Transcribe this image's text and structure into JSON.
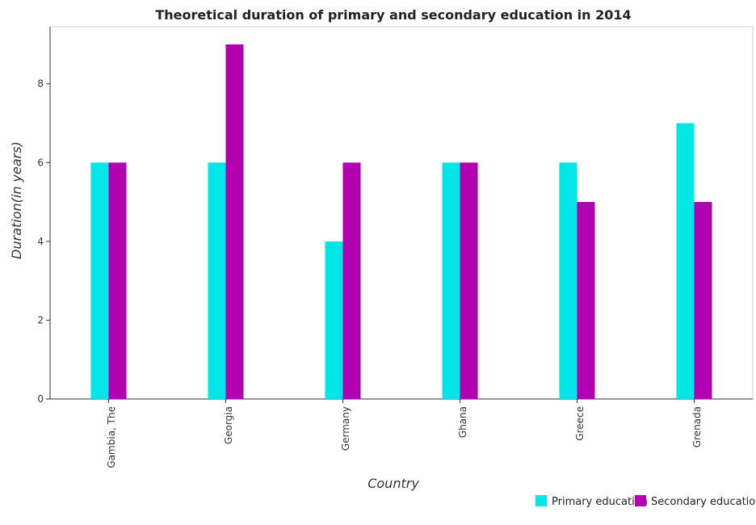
{
  "chart_data": {
    "type": "bar",
    "title": "Theoretical duration of primary and secondary education in 2014",
    "xlabel": "Country",
    "ylabel": "Duration(in years)",
    "categories": [
      "Gambia, The",
      "Georgia",
      "Germany",
      "Ghana",
      "Greece",
      "Grenada"
    ],
    "series": [
      {
        "name": "Primary education",
        "values": [
          6,
          6,
          4,
          6,
          6,
          7
        ],
        "color": "#00e5e5"
      },
      {
        "name": "Secondary education",
        "values": [
          6,
          9,
          6,
          6,
          5,
          5
        ],
        "color": "#b000b0"
      }
    ],
    "ylim": [
      0,
      9.45
    ],
    "yticks": [
      0,
      2,
      4,
      6,
      8
    ],
    "grid": false,
    "legend_position": "bottom-right"
  }
}
